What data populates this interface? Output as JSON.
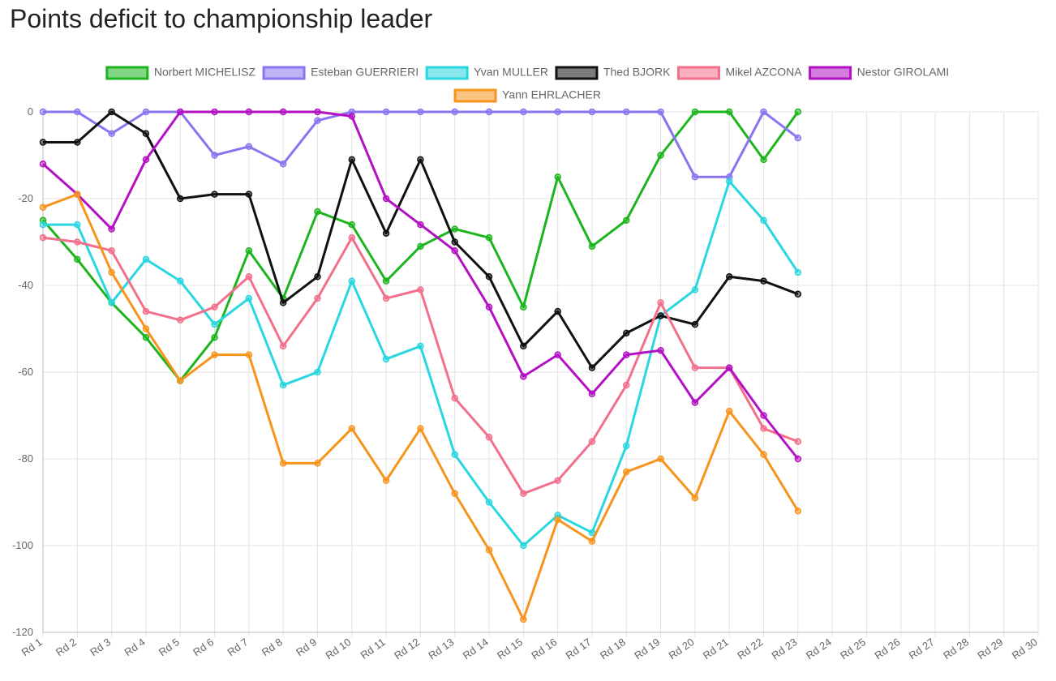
{
  "chart_data": {
    "type": "line",
    "title": "Points deficit to championship leader",
    "categories": [
      "Rd 1",
      "Rd 2",
      "Rd 3",
      "Rd 4",
      "Rd 5",
      "Rd 6",
      "Rd 7",
      "Rd 8",
      "Rd 9",
      "Rd 10",
      "Rd 11",
      "Rd 12",
      "Rd 13",
      "Rd 14",
      "Rd 15",
      "Rd 16",
      "Rd 17",
      "Rd 18",
      "Rd 19",
      "Rd 20",
      "Rd 21",
      "Rd 22",
      "Rd 23",
      "Rd 24",
      "Rd 25",
      "Rd 26",
      "Rd 27",
      "Rd 28",
      "Rd 29",
      "Rd 30"
    ],
    "series": [
      {
        "name": "Norbert MICHELISZ",
        "color": "#1db51d",
        "values": [
          -25,
          -34,
          -44,
          -52,
          -62,
          -52,
          -32,
          -43,
          -23,
          -26,
          -39,
          -31,
          -27,
          -29,
          -45,
          -15,
          -31,
          -25,
          -10,
          0,
          0,
          -11,
          0,
          null,
          null,
          null,
          null,
          null,
          null,
          null
        ]
      },
      {
        "name": "Esteban GUERRIERI",
        "color": "#8a74f0",
        "values": [
          0,
          0,
          -5,
          0,
          0,
          -10,
          -8,
          -12,
          -2,
          0,
          0,
          0,
          0,
          0,
          0,
          0,
          0,
          0,
          0,
          -15,
          -15,
          0,
          -6,
          null,
          null,
          null,
          null,
          null,
          null,
          null
        ]
      },
      {
        "name": "Yvan MULLER",
        "color": "#2ad6df",
        "values": [
          -26,
          -26,
          -44,
          -34,
          -39,
          -49,
          -43,
          -63,
          -60,
          -39,
          -57,
          -54,
          -79,
          -90,
          -100,
          -93,
          -97,
          -77,
          -47,
          -41,
          -16,
          -25,
          -37,
          null,
          null,
          null,
          null,
          null,
          null,
          null
        ]
      },
      {
        "name": "Thed BJORK",
        "color": "#111111",
        "values": [
          -7,
          -7,
          0,
          -5,
          -20,
          -19,
          -19,
          -44,
          -38,
          -11,
          -28,
          -11,
          -30,
          -38,
          -54,
          -46,
          -59,
          -51,
          -47,
          -49,
          -38,
          -39,
          -42,
          null,
          null,
          null,
          null,
          null,
          null,
          null
        ]
      },
      {
        "name": "Mikel AZCONA",
        "color": "#f2708c",
        "values": [
          -29,
          -30,
          -32,
          -46,
          -48,
          -45,
          -38,
          -54,
          -43,
          -29,
          -43,
          -41,
          -66,
          -75,
          -88,
          -85,
          -76,
          -63,
          -44,
          -59,
          -59,
          -73,
          -76,
          null,
          null,
          null,
          null,
          null,
          null,
          null
        ]
      },
      {
        "name": "Nestor GIROLAMI",
        "color": "#b311c4",
        "values": [
          -12,
          -19,
          -27,
          -11,
          0,
          0,
          0,
          0,
          0,
          -1,
          -20,
          -26,
          -32,
          -45,
          -61,
          -56,
          -65,
          -56,
          -55,
          -67,
          -59,
          -70,
          -80,
          null,
          null,
          null,
          null,
          null,
          null,
          null
        ]
      },
      {
        "name": "Yann EHRLACHER",
        "color": "#f7941d",
        "values": [
          -22,
          -19,
          -37,
          -50,
          -62,
          -56,
          -56,
          -81,
          -81,
          -73,
          -85,
          -73,
          -88,
          -101,
          -117,
          -94,
          -99,
          -83,
          -80,
          -89,
          -69,
          -79,
          -92,
          null,
          null,
          null,
          null,
          null,
          null,
          null
        ]
      }
    ],
    "ylim": [
      -120,
      0
    ],
    "yticks": [
      -120,
      -100,
      -80,
      -60,
      -40,
      -20,
      0
    ],
    "grid": true,
    "legend": "top"
  }
}
